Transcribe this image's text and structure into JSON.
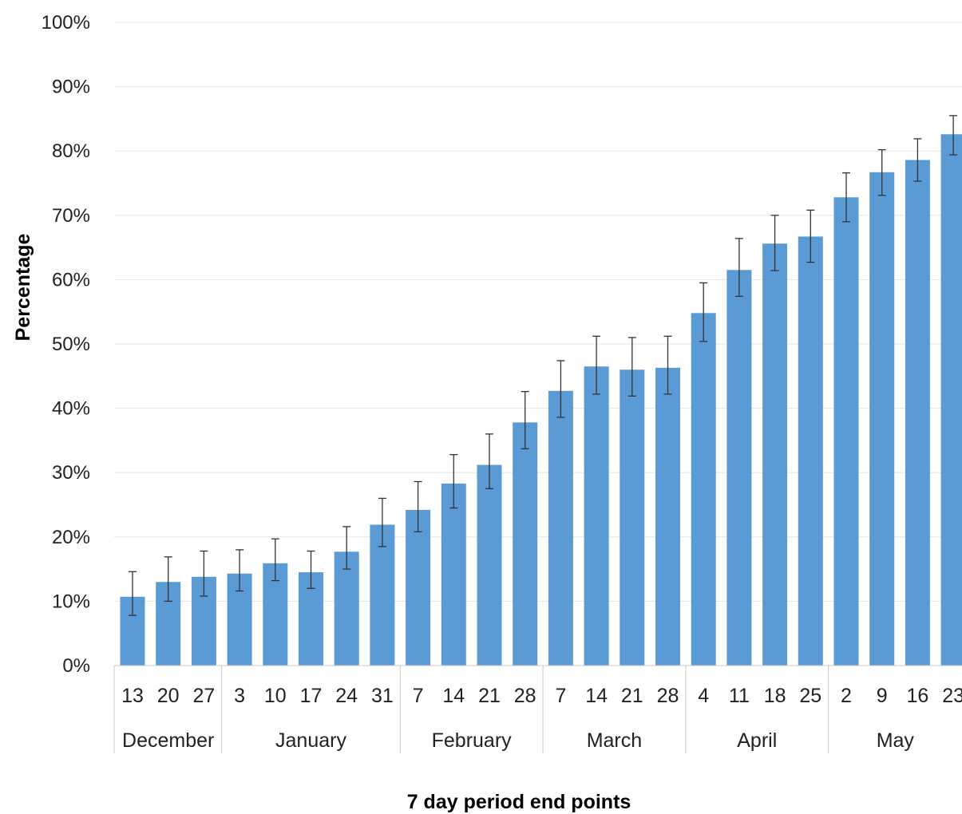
{
  "chart_data": {
    "type": "bar",
    "title": "",
    "xlabel": "7 day period end points",
    "ylabel": "Percentage",
    "ylim": [
      0,
      100
    ],
    "y_ticks": [
      "0%",
      "10%",
      "20%",
      "30%",
      "40%",
      "50%",
      "60%",
      "70%",
      "80%",
      "90%",
      "100%"
    ],
    "grid": true,
    "color": "#5b9bd5",
    "categories": [
      "13",
      "20",
      "27",
      "3",
      "10",
      "17",
      "24",
      "31",
      "7",
      "14",
      "21",
      "28",
      "7",
      "14",
      "21",
      "28",
      "4",
      "11",
      "18",
      "25",
      "2",
      "9",
      "16",
      "23"
    ],
    "months": [
      {
        "label": "December",
        "count": 3
      },
      {
        "label": "January",
        "count": 5
      },
      {
        "label": "February",
        "count": 4
      },
      {
        "label": "March",
        "count": 4
      },
      {
        "label": "April",
        "count": 4
      },
      {
        "label": "May",
        "count": 4
      }
    ],
    "values": [
      10.7,
      13.0,
      13.8,
      14.3,
      15.9,
      14.5,
      17.7,
      21.9,
      24.2,
      28.3,
      31.2,
      37.8,
      42.7,
      46.5,
      46.0,
      46.3,
      54.8,
      61.5,
      65.6,
      66.7,
      72.8,
      76.7,
      78.6,
      82.6
    ],
    "error_low": [
      7.8,
      10.0,
      10.8,
      11.6,
      13.2,
      12.0,
      15.0,
      18.5,
      20.8,
      24.5,
      27.5,
      33.7,
      38.6,
      42.2,
      41.9,
      42.2,
      50.4,
      57.4,
      61.4,
      62.7,
      69.0,
      73.1,
      75.3,
      79.4
    ],
    "error_high": [
      14.6,
      16.9,
      17.8,
      18.0,
      19.7,
      17.8,
      21.6,
      26.0,
      28.6,
      32.8,
      36.0,
      42.6,
      47.4,
      51.2,
      51.0,
      51.2,
      59.5,
      66.4,
      70.0,
      70.8,
      76.6,
      80.2,
      81.9,
      85.5
    ]
  }
}
